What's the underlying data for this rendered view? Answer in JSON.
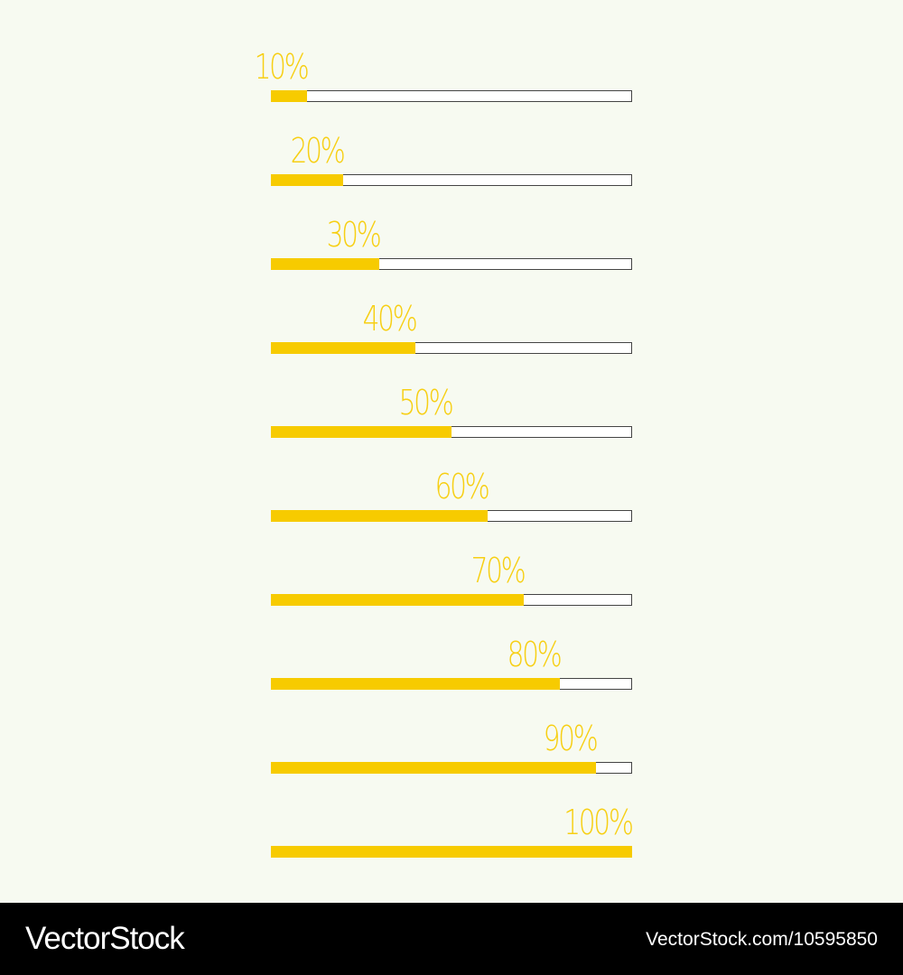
{
  "progress_bars": [
    {
      "label": "10%",
      "value": 10
    },
    {
      "label": "20%",
      "value": 20
    },
    {
      "label": "30%",
      "value": 30
    },
    {
      "label": "40%",
      "value": 40
    },
    {
      "label": "50%",
      "value": 50
    },
    {
      "label": "60%",
      "value": 60
    },
    {
      "label": "70%",
      "value": 70
    },
    {
      "label": "80%",
      "value": 80
    },
    {
      "label": "90%",
      "value": 90
    },
    {
      "label": "100%",
      "value": 100
    }
  ],
  "colors": {
    "fill": "#f7cb00",
    "label": "#f7cf13",
    "track": "#ffffff",
    "track_border": "#444444",
    "background": "#f7faf1"
  },
  "footer": {
    "logo": "VectorStock",
    "url": "VectorStock.com/10595850"
  }
}
